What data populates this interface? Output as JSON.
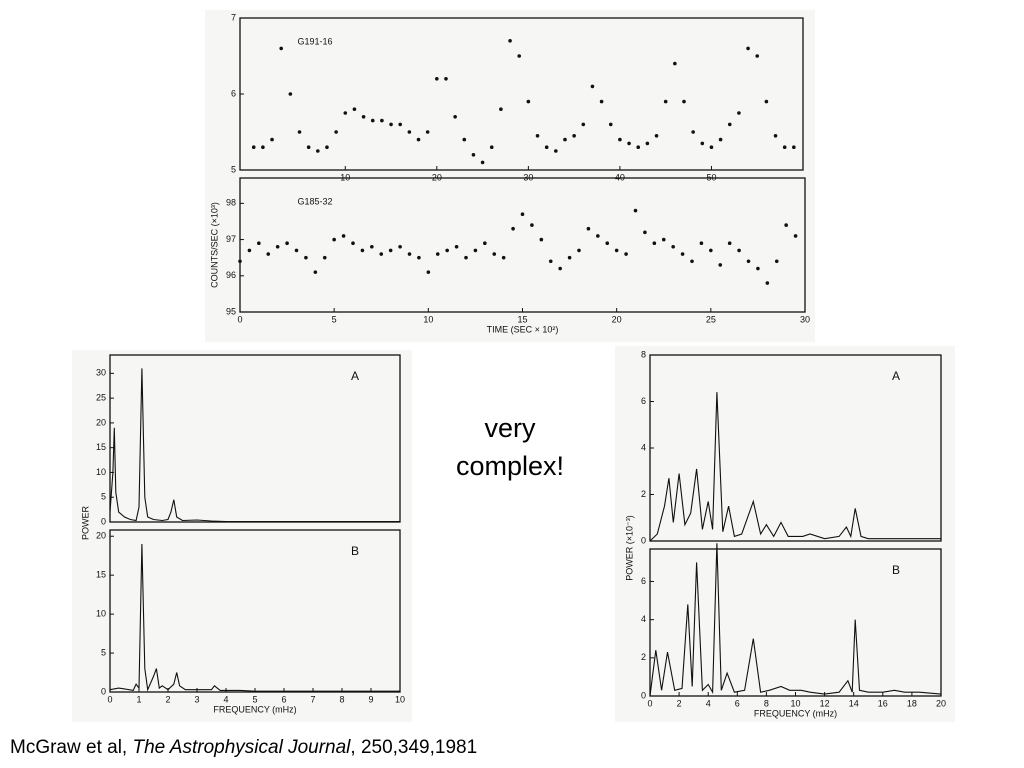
{
  "chart_data": [
    {
      "type": "scatter",
      "label": "G191-16",
      "color": "#111",
      "ylabel": "COUNTS/SEC (×10³)",
      "xlim": [
        -1.5,
        60
      ],
      "ylim": [
        5,
        7
      ],
      "xticks": [
        10,
        20,
        30,
        40,
        50
      ],
      "yticks": [
        5,
        6,
        7
      ],
      "x": [
        0,
        1,
        2,
        3,
        4,
        5,
        6,
        7,
        8,
        9,
        10,
        11,
        12,
        13,
        14,
        15,
        16,
        17,
        18,
        19,
        20,
        21,
        22,
        23,
        24,
        25,
        26,
        27,
        28,
        29,
        30,
        31,
        32,
        33,
        34,
        35,
        36,
        37,
        38,
        39,
        40,
        41,
        42,
        43,
        44,
        45,
        46,
        47,
        48,
        49,
        50,
        51,
        52,
        53,
        54,
        55,
        56,
        57,
        58,
        59
      ],
      "values": [
        5.3,
        5.3,
        5.4,
        6.6,
        6.0,
        5.5,
        5.3,
        5.25,
        5.3,
        5.5,
        5.75,
        5.8,
        5.7,
        5.65,
        5.65,
        5.6,
        5.6,
        5.5,
        5.4,
        5.5,
        6.2,
        6.2,
        5.7,
        5.4,
        5.2,
        5.1,
        5.3,
        5.8,
        6.7,
        6.5,
        5.9,
        5.45,
        5.3,
        5.25,
        5.4,
        5.45,
        5.6,
        6.1,
        5.9,
        5.6,
        5.4,
        5.35,
        5.3,
        5.35,
        5.45,
        5.9,
        6.4,
        5.9,
        5.5,
        5.35,
        5.3,
        5.4,
        5.6,
        5.75,
        6.6,
        6.5,
        5.9,
        5.45,
        5.3,
        5.3
      ]
    },
    {
      "type": "scatter",
      "label": "G185-32",
      "color": "#111",
      "xlabel": "TIME (SEC × 10²)",
      "xlim": [
        0,
        30
      ],
      "ylim": [
        95,
        98.7
      ],
      "xticks": [
        0,
        5,
        10,
        15,
        20,
        25,
        30
      ],
      "yticks": [
        95,
        96,
        97,
        98
      ],
      "x": [
        0,
        0.5,
        1,
        1.5,
        2,
        2.5,
        3,
        3.5,
        4,
        4.5,
        5,
        5.5,
        6,
        6.5,
        7,
        7.5,
        8,
        8.5,
        9,
        9.5,
        10,
        10.5,
        11,
        11.5,
        12,
        12.5,
        13,
        13.5,
        14,
        14.5,
        15,
        15.5,
        16,
        16.5,
        17,
        17.5,
        18,
        18.5,
        19,
        19.5,
        20,
        20.5,
        21,
        21.5,
        22,
        22.5,
        23,
        23.5,
        24,
        24.5,
        25,
        25.5,
        26,
        26.5,
        27,
        27.5,
        28,
        28.5,
        29,
        29.5
      ],
      "values": [
        96.4,
        96.7,
        96.9,
        96.6,
        96.8,
        96.9,
        96.7,
        96.5,
        96.1,
        96.5,
        97.0,
        97.1,
        96.9,
        96.7,
        96.8,
        96.6,
        96.7,
        96.8,
        96.6,
        96.5,
        96.1,
        96.6,
        96.7,
        96.8,
        96.5,
        96.7,
        96.9,
        96.6,
        96.5,
        97.3,
        97.7,
        97.4,
        97.0,
        96.4,
        96.2,
        96.5,
        96.7,
        97.3,
        97.1,
        96.9,
        96.7,
        96.6,
        97.8,
        97.2,
        96.9,
        97.0,
        96.8,
        96.6,
        96.4,
        96.9,
        96.7,
        96.3,
        96.9,
        96.7,
        96.4,
        96.2,
        95.8,
        96.4,
        97.4,
        97.1
      ]
    },
    {
      "type": "line",
      "label": "A",
      "color": "#111",
      "xlim": [
        0,
        10
      ],
      "ylim": [
        0,
        33.7
      ],
      "xticks": [],
      "yticks": [
        0,
        5,
        10,
        15,
        20,
        25,
        30
      ],
      "x": [
        0,
        0.1,
        0.15,
        0.2,
        0.3,
        0.5,
        0.7,
        0.9,
        1.0,
        1.1,
        1.2,
        1.3,
        1.5,
        1.8,
        2.0,
        2.1,
        2.2,
        2.3,
        2.5,
        3,
        3.5,
        4,
        5,
        6,
        7,
        8,
        9,
        10
      ],
      "values": [
        2,
        10,
        19,
        6,
        2,
        1,
        0.5,
        0.3,
        3,
        31,
        5,
        1,
        0.5,
        0.3,
        0.5,
        2,
        4.5,
        1,
        0.3,
        0.4,
        0.2,
        0.1,
        0.1,
        0.1,
        0.1,
        0.1,
        0.1,
        0.1
      ]
    },
    {
      "type": "line",
      "label": "B",
      "color": "#111",
      "ylabel": "POWER",
      "xlabel": "FREQUENCY (mHz)",
      "xlim": [
        0,
        10
      ],
      "ylim": [
        0,
        20.8
      ],
      "xticks": [
        0,
        1,
        2,
        3,
        4,
        5,
        6,
        7,
        8,
        9,
        10
      ],
      "yticks": [
        0,
        5,
        10,
        15,
        20
      ],
      "x": [
        0,
        0.3,
        0.5,
        0.8,
        0.9,
        1.0,
        1.1,
        1.2,
        1.3,
        1.5,
        1.6,
        1.7,
        1.8,
        2.0,
        2.2,
        2.3,
        2.4,
        2.6,
        3.0,
        3.5,
        3.6,
        3.8,
        4.5,
        5,
        6,
        7,
        8,
        9,
        10
      ],
      "values": [
        0.3,
        0.5,
        0.4,
        0.2,
        1,
        0.5,
        19,
        3,
        0.3,
        2,
        3,
        0.5,
        0.8,
        0.3,
        1,
        2.5,
        0.8,
        0.3,
        0.3,
        0.3,
        0.8,
        0.2,
        0.2,
        0.1,
        0.1,
        0.1,
        0.1,
        0.1,
        0.1
      ]
    },
    {
      "type": "line",
      "label": "A",
      "color": "#111",
      "xlim": [
        0,
        20
      ],
      "ylim": [
        0,
        8
      ],
      "xticks": [],
      "yticks": [
        0,
        2,
        4,
        6,
        8
      ],
      "x": [
        0,
        0.5,
        1.0,
        1.3,
        1.6,
        2.0,
        2.4,
        2.8,
        3.2,
        3.6,
        4.0,
        4.3,
        4.6,
        5.0,
        5.4,
        5.8,
        6.3,
        7.1,
        7.6,
        8.0,
        8.5,
        9.0,
        9.5,
        10.5,
        11,
        12,
        13,
        13.5,
        13.8,
        14.1,
        14.5,
        15,
        16,
        17,
        18,
        19,
        20
      ],
      "values": [
        0,
        0.3,
        1.5,
        2.7,
        0.8,
        2.9,
        0.7,
        1.2,
        3.1,
        0.5,
        1.7,
        0.5,
        6.4,
        0.4,
        1.5,
        0.2,
        0.3,
        1.7,
        0.3,
        0.7,
        0.2,
        0.8,
        0.2,
        0.2,
        0.3,
        0.1,
        0.2,
        0.6,
        0.2,
        1.4,
        0.2,
        0.1,
        0.1,
        0.1,
        0.1,
        0.1,
        0.1
      ]
    },
    {
      "type": "line",
      "label": "B",
      "color": "#111",
      "ylabel": "POWER (×10⁻³)",
      "xlabel": "FREQUENCY (mHz)",
      "xlim": [
        0,
        20
      ],
      "ylim": [
        0,
        7.7
      ],
      "xticks": [
        0,
        2,
        4,
        6,
        8,
        10,
        12,
        14,
        16,
        18,
        20
      ],
      "yticks": [
        0,
        2,
        4,
        6
      ],
      "x": [
        0,
        0.4,
        0.8,
        1.2,
        1.7,
        2.2,
        2.6,
        2.9,
        3.2,
        3.6,
        4.0,
        4.3,
        4.6,
        4.9,
        5.3,
        5.8,
        6.5,
        7.1,
        7.6,
        8.2,
        9.0,
        9.6,
        10.4,
        11,
        12,
        13,
        13.6,
        13.9,
        14.1,
        14.4,
        15,
        16,
        16.8,
        17.5,
        18.5,
        20
      ],
      "values": [
        0,
        2.4,
        0.3,
        2.3,
        0.3,
        0.4,
        4.8,
        0.5,
        7.0,
        0.3,
        0.6,
        0.2,
        8.0,
        0.3,
        1.2,
        0.2,
        0.3,
        3.0,
        0.2,
        0.3,
        0.5,
        0.3,
        0.3,
        0.2,
        0.1,
        0.2,
        0.8,
        0.2,
        4.0,
        0.3,
        0.2,
        0.2,
        0.3,
        0.2,
        0.2,
        0.1
      ]
    }
  ],
  "annotation": [
    "very",
    "complex!"
  ],
  "citation": {
    "authors": "McGraw et al, ",
    "journal": "The Astrophysical Journal",
    "ref": ", 250,349,1981"
  }
}
